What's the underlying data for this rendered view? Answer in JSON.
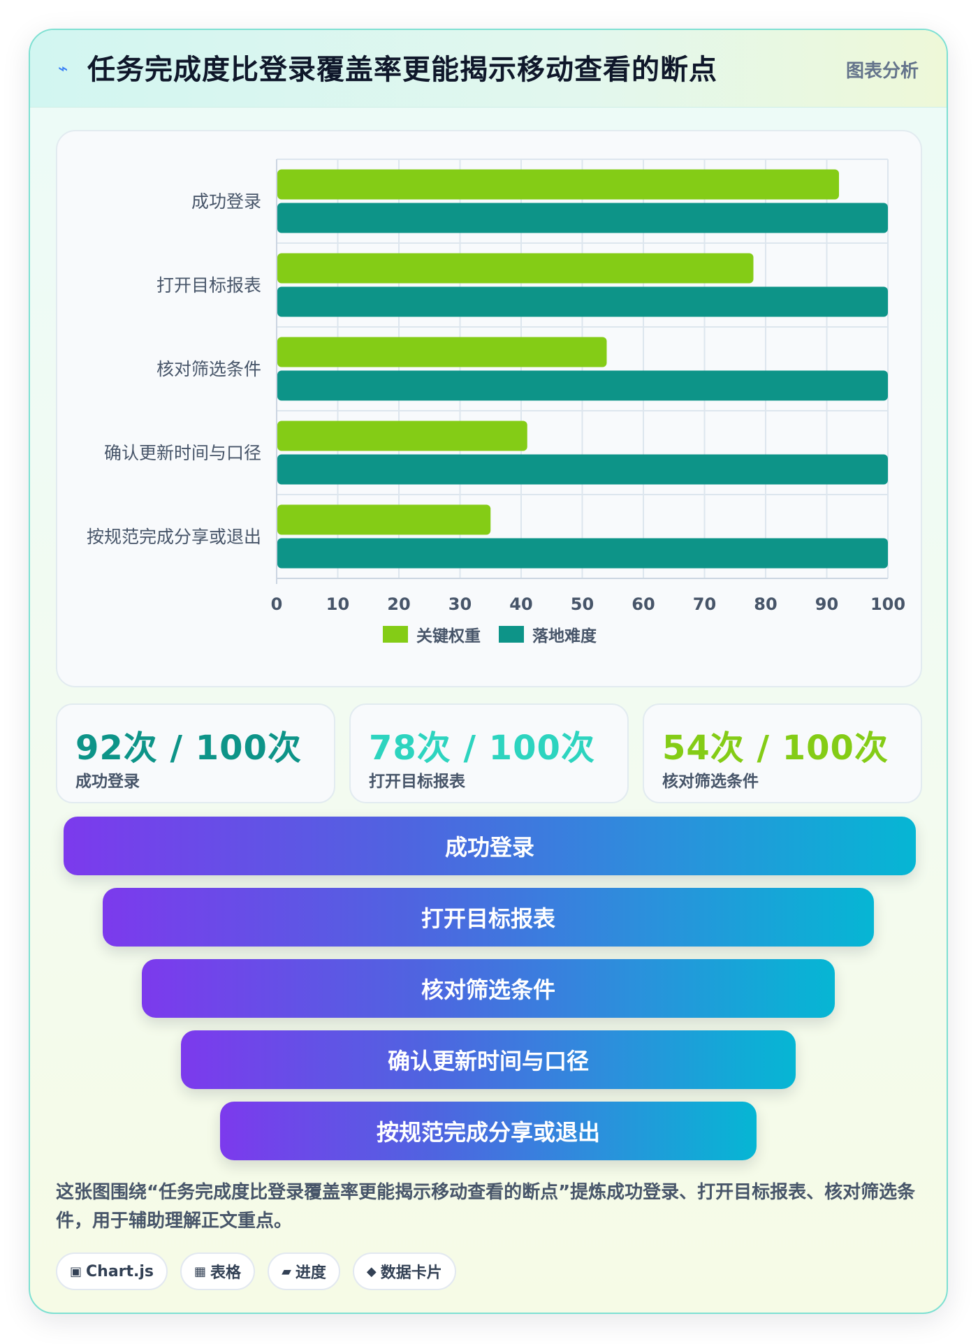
{
  "header": {
    "icon": "lightning-icon",
    "title": "任务完成度比登录覆盖率更能揭示移动查看的断点",
    "tag": "图表分析"
  },
  "chart_data": {
    "type": "bar",
    "orientation": "horizontal",
    "categories": [
      "成功登录",
      "打开目标报表",
      "核对筛选条件",
      "确认更新时间与口径",
      "按规范完成分享或退出"
    ],
    "series": [
      {
        "name": "关键权重",
        "values": [
          92,
          78,
          54,
          41,
          35
        ],
        "color": "#84cc16"
      },
      {
        "name": "落地难度",
        "values": [
          100,
          100,
          100,
          100,
          100
        ],
        "color": "#0d9488"
      }
    ],
    "xlim": [
      0,
      100
    ],
    "xticks": [
      0,
      10,
      20,
      30,
      40,
      50,
      60,
      70,
      80,
      90,
      100
    ],
    "grid": true,
    "legend_position": "bottom"
  },
  "stats": [
    {
      "value": "92次 / 100次",
      "label": "成功登录",
      "color": "#0d9488"
    },
    {
      "value": "78次 / 100次",
      "label": "打开目标报表",
      "color": "#2dd4bf"
    },
    {
      "value": "54次 / 100次",
      "label": "核对筛选条件",
      "color": "#84cc16"
    }
  ],
  "funnel": [
    "成功登录",
    "打开目标报表",
    "核对筛选条件",
    "确认更新时间与口径",
    "按规范完成分享或退出"
  ],
  "caption": "这张图围绕“任务完成度比登录覆盖率更能揭示移动查看的断点”提炼成功登录、打开目标报表、核对筛选条件，用于辅助理解正文重点。",
  "chips": [
    {
      "icon": "▣",
      "label": "Chart.js"
    },
    {
      "icon": "▦",
      "label": "表格"
    },
    {
      "icon": "▰",
      "label": "进度"
    },
    {
      "icon": "◆",
      "label": "数据卡片"
    }
  ]
}
